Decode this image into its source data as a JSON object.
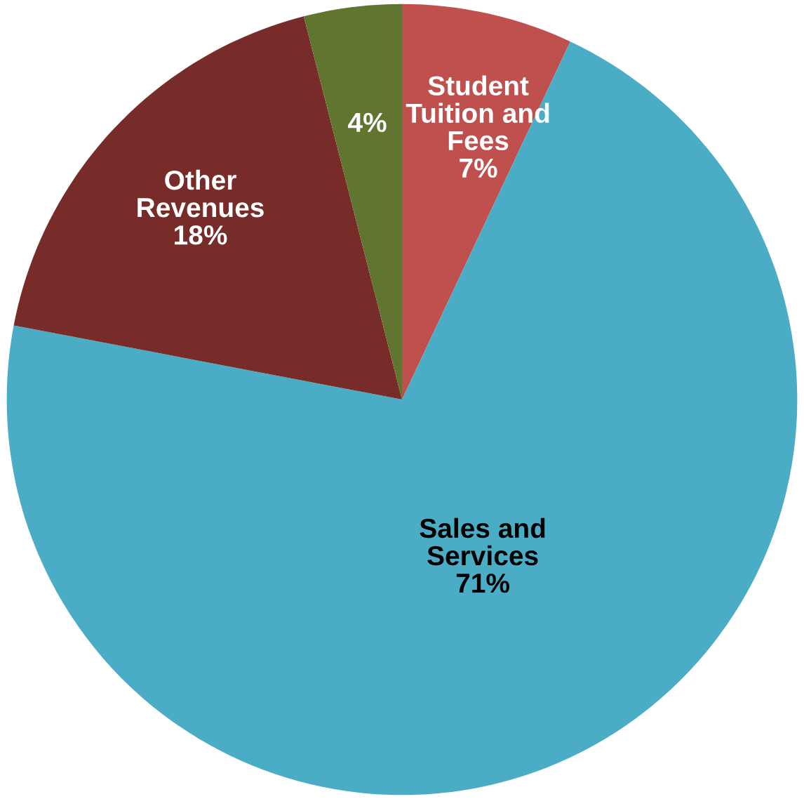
{
  "chart_data": {
    "type": "pie",
    "categories": [
      "Student\nTuition and\nFees",
      "Sales and\nServices",
      "Other\nRevenues",
      null
    ],
    "values": [
      7,
      71,
      18,
      4
    ],
    "value_labels": [
      "7%",
      "71%",
      "18%",
      "4%"
    ],
    "colors": [
      "#c0504d",
      "#4bacc6",
      "#772c2a",
      "#5f7530"
    ],
    "legend": false
  }
}
